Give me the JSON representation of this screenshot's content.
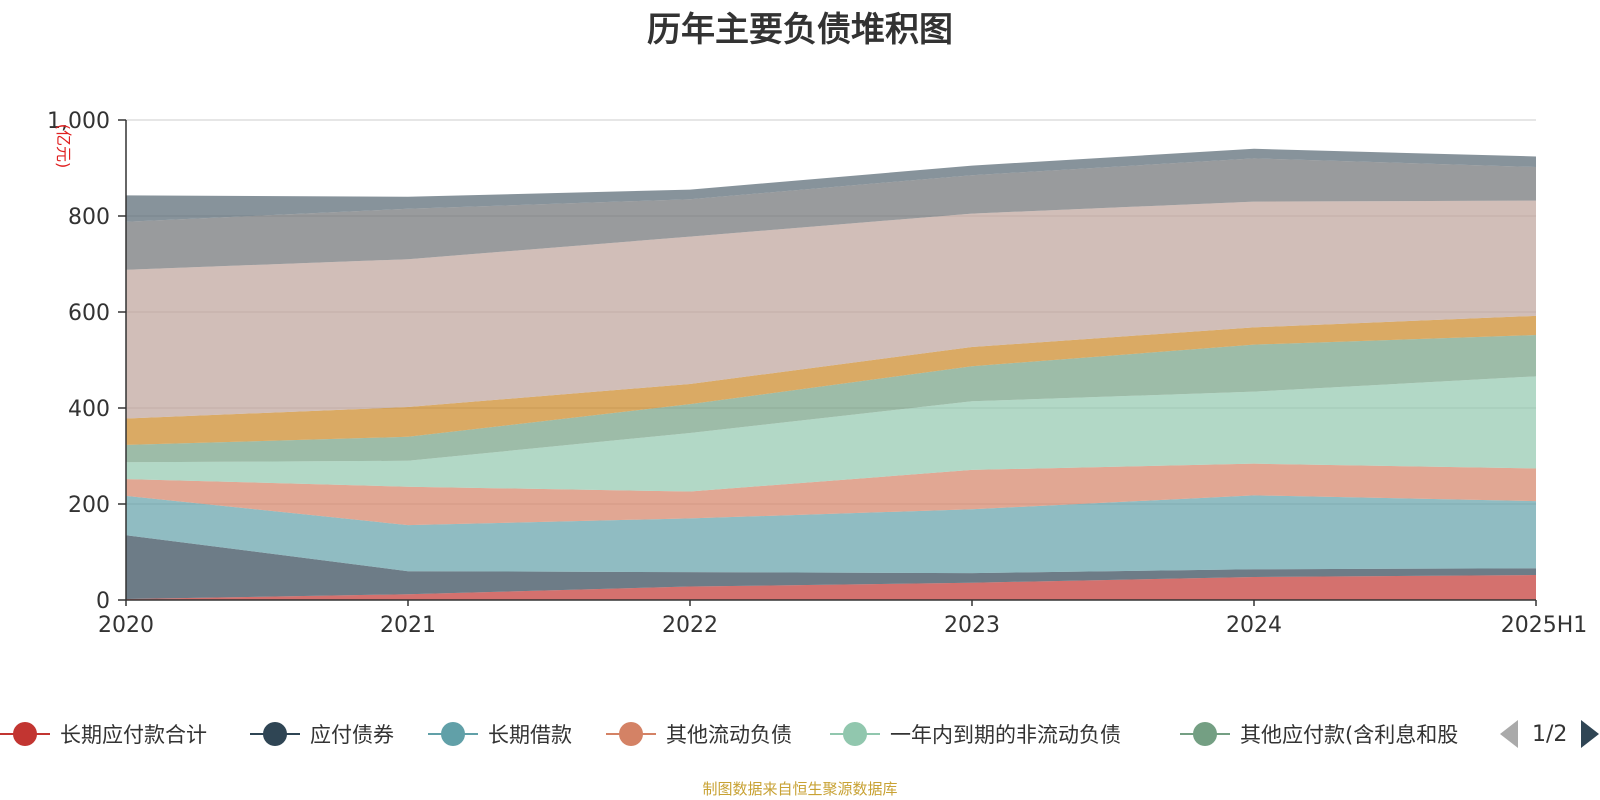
{
  "title": "历年主要负债堆积图",
  "source": "制图数据来自恒生聚源数据库",
  "source_color": "#c8a234",
  "legend_page": "1/2",
  "legend_icons": {
    "prev": "arrow-left-icon",
    "next": "arrow-right-icon"
  },
  "chart_data": {
    "type": "area",
    "stacked": true,
    "categories": [
      "2020",
      "2021",
      "2022",
      "2023",
      "2024",
      "2025H1"
    ],
    "ylabel": "(亿元)",
    "ylim": [
      0,
      1000
    ],
    "yticks": [
      "0",
      "200",
      "400",
      "600",
      "800",
      "1,000"
    ],
    "grid": true,
    "legend_position": "bottom",
    "series": [
      {
        "name": "长期应付款合计",
        "color": "#c23531",
        "values": [
          2,
          12,
          28,
          36,
          48,
          52
        ]
      },
      {
        "name": "应付债券",
        "color": "#2f4554",
        "values": [
          133,
          48,
          30,
          20,
          16,
          14
        ]
      },
      {
        "name": "长期借款",
        "color": "#61a0a8",
        "values": [
          82,
          96,
          112,
          133,
          154,
          140
        ]
      },
      {
        "name": "其他流动负债",
        "color": "#d48265",
        "values": [
          35,
          80,
          56,
          82,
          66,
          68
        ]
      },
      {
        "name": "一年内到期的非流动负债",
        "color": "#91c7ae",
        "values": [
          35,
          54,
          122,
          143,
          150,
          192
        ]
      },
      {
        "name": "其他应付款(含利息和股",
        "color": "#749f83",
        "values": [
          36,
          50,
          60,
          73,
          98,
          86
        ]
      },
      {
        "name": "",
        "color": "#ca8622",
        "values": [
          55,
          62,
          42,
          40,
          36,
          40
        ]
      },
      {
        "name": "",
        "color": "#bda29a",
        "values": [
          310,
          308,
          307,
          278,
          262,
          240
        ]
      },
      {
        "name": "",
        "color": "#6e7074",
        "values": [
          100,
          105,
          78,
          80,
          90,
          70
        ]
      },
      {
        "name": "",
        "color": "#546570",
        "values": [
          55,
          25,
          20,
          20,
          20,
          22
        ]
      }
    ]
  }
}
